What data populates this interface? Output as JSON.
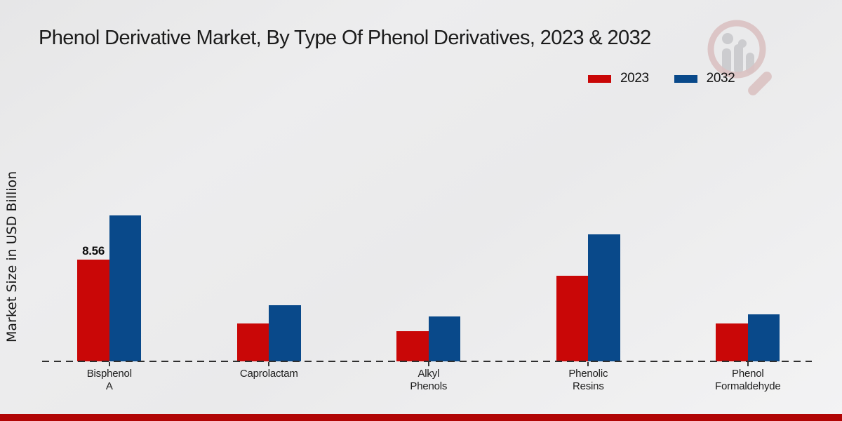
{
  "page": {
    "title": "Phenol Derivative Market, By Type Of Phenol Derivatives, 2023 & 2032"
  },
  "colors": {
    "bar_2023": "#c90707",
    "bar_2032": "#09498a",
    "footer_strip": "#b10505",
    "baseline": "#2f2f2f"
  },
  "chart_data": {
    "type": "bar",
    "title": "Phenol Derivative Market, By Type Of Phenol Derivatives, 2023 & 2032",
    "xlabel": "",
    "ylabel": "Market Size in USD Billion",
    "categories": [
      "Bisphenol\nA",
      "Caprolactam",
      "Alkyl\nPhenols",
      "Phenolic\nResins",
      "Phenol\nFormaldehyde"
    ],
    "series": [
      {
        "name": "2023",
        "color": "#c90707",
        "values": [
          8.56,
          3.2,
          2.55,
          7.2,
          3.2
        ]
      },
      {
        "name": "2032",
        "color": "#09498a",
        "values": [
          12.3,
          4.7,
          3.8,
          10.7,
          3.95
        ]
      }
    ],
    "value_labels": [
      {
        "series_index": 0,
        "category_index": 0,
        "text": "8.56"
      }
    ],
    "ylim": [
      0,
      13
    ],
    "grid": false,
    "legend_position": "top-right",
    "baseline_style": "dashed"
  }
}
